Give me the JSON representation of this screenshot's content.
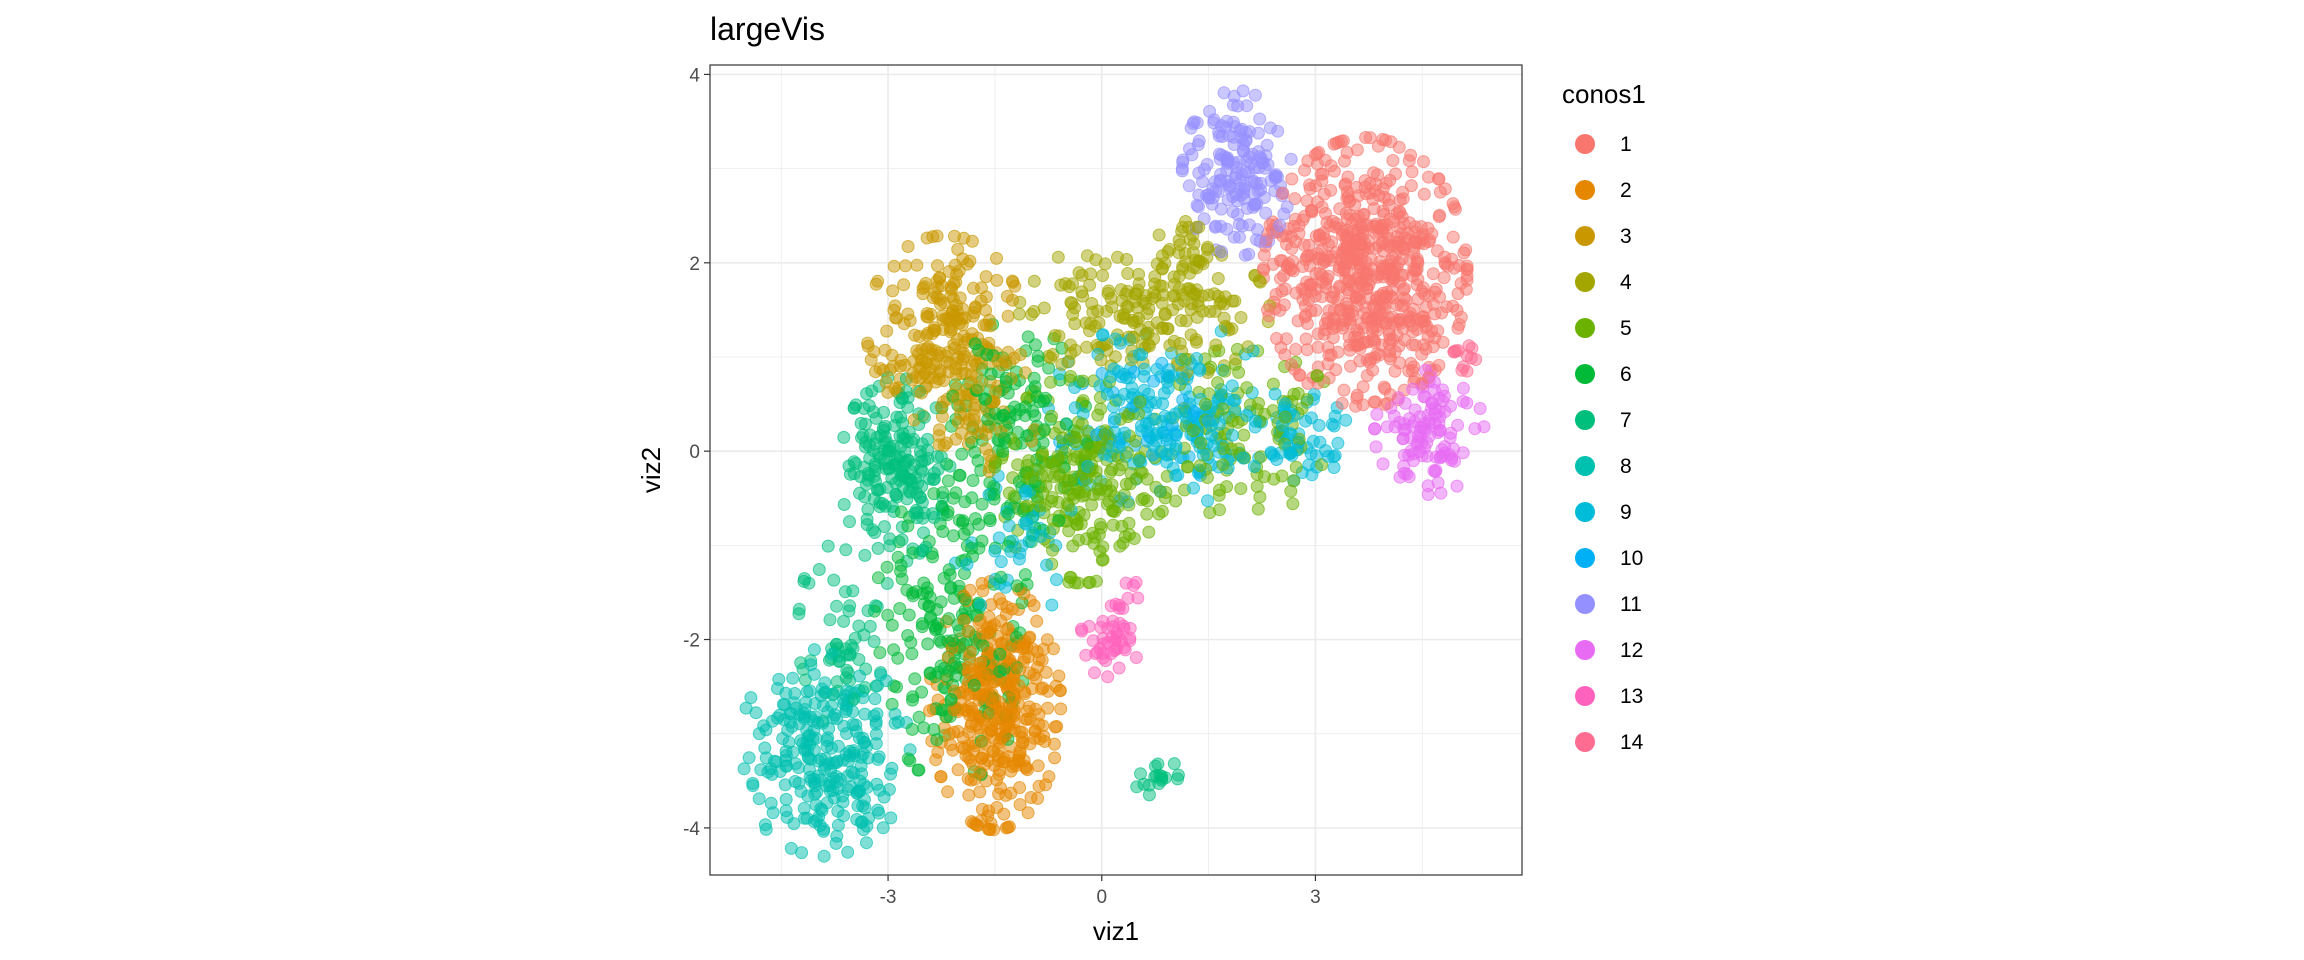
{
  "chart_data": {
    "type": "scatter",
    "title": "largeVis",
    "xlabel": "viz1",
    "ylabel": "viz2",
    "xlim": [
      -5.5,
      5.9
    ],
    "ylim": [
      -4.5,
      4.1
    ],
    "xticks": [
      -3,
      0,
      3
    ],
    "yticks": [
      -4,
      -2,
      0,
      2,
      4
    ],
    "xtick_labels": [
      "-3",
      "0",
      "3"
    ],
    "ytick_labels": [
      "-4",
      "-2",
      "0",
      "2",
      "4"
    ],
    "grid": true,
    "point_alpha": 0.5,
    "legend": {
      "title": "conos1",
      "placement": "right",
      "entries": [
        {
          "label": "1",
          "color": "#F8766D"
        },
        {
          "label": "2",
          "color": "#E58700"
        },
        {
          "label": "3",
          "color": "#C99800"
        },
        {
          "label": "4",
          "color": "#A3A500"
        },
        {
          "label": "5",
          "color": "#6BB100"
        },
        {
          "label": "6",
          "color": "#00BA38"
        },
        {
          "label": "7",
          "color": "#00BF7D"
        },
        {
          "label": "8",
          "color": "#00C0AF"
        },
        {
          "label": "9",
          "color": "#00BCD8"
        },
        {
          "label": "10",
          "color": "#00B0F6"
        },
        {
          "label": "11",
          "color": "#9590FF"
        },
        {
          "label": "12",
          "color": "#E76BF3"
        },
        {
          "label": "13",
          "color": "#FF62BC"
        },
        {
          "label": "14",
          "color": "#FF6C91"
        }
      ]
    },
    "clusters": [
      {
        "cluster": "1",
        "blobs": [
          {
            "cx": 3.7,
            "cy": 1.9,
            "sx": 0.65,
            "sy": 0.65,
            "n": 650
          }
        ]
      },
      {
        "cluster": "2",
        "blobs": [
          {
            "cx": -1.5,
            "cy": -2.7,
            "sx": 0.42,
            "sy": 0.6,
            "n": 380
          }
        ]
      },
      {
        "cluster": "3",
        "blobs": [
          {
            "cx": -2.2,
            "cy": 1.3,
            "sx": 0.5,
            "sy": 0.45,
            "n": 220
          },
          {
            "cx": -1.8,
            "cy": 0.4,
            "sx": 0.4,
            "sy": 0.35,
            "n": 60
          }
        ]
      },
      {
        "cluster": "4",
        "blobs": [
          {
            "cx": 0.6,
            "cy": 1.5,
            "sx": 0.8,
            "sy": 0.35,
            "n": 200
          },
          {
            "cx": 1.2,
            "cy": 2.1,
            "sx": 0.25,
            "sy": 0.2,
            "n": 25
          }
        ]
      },
      {
        "cluster": "5",
        "blobs": [
          {
            "cx": -0.3,
            "cy": -0.3,
            "sx": 0.55,
            "sy": 0.5,
            "n": 240
          },
          {
            "cx": 1.9,
            "cy": 0.2,
            "sx": 0.7,
            "sy": 0.4,
            "n": 120
          }
        ]
      },
      {
        "cluster": "6",
        "blobs": [
          {
            "cx": -2.1,
            "cy": -1.9,
            "sx": 0.5,
            "sy": 0.75,
            "n": 200
          },
          {
            "cx": -1.3,
            "cy": 0.2,
            "sx": 0.5,
            "sy": 0.55,
            "n": 150
          }
        ]
      },
      {
        "cluster": "7",
        "blobs": [
          {
            "cx": -2.9,
            "cy": -0.2,
            "sx": 0.35,
            "sy": 0.45,
            "n": 190
          },
          {
            "cx": -3.6,
            "cy": -1.9,
            "sx": 0.3,
            "sy": 0.5,
            "n": 60
          },
          {
            "cx": 0.75,
            "cy": -3.4,
            "sx": 0.15,
            "sy": 0.12,
            "n": 18
          }
        ]
      },
      {
        "cluster": "8",
        "blobs": [
          {
            "cx": -3.9,
            "cy": -3.2,
            "sx": 0.55,
            "sy": 0.5,
            "n": 260
          }
        ]
      },
      {
        "cluster": "9",
        "blobs": [
          {
            "cx": 0.9,
            "cy": 0.4,
            "sx": 0.75,
            "sy": 0.45,
            "n": 200
          },
          {
            "cx": 2.8,
            "cy": 0.15,
            "sx": 0.3,
            "sy": 0.25,
            "n": 60
          },
          {
            "cx": -1.2,
            "cy": -1.0,
            "sx": 0.4,
            "sy": 0.35,
            "n": 40
          }
        ]
      },
      {
        "cluster": "10",
        "blobs": [
          {
            "cx": 0.5,
            "cy": 0.2,
            "sx": 0.5,
            "sy": 0.35,
            "n": 40
          }
        ]
      },
      {
        "cluster": "11",
        "blobs": [
          {
            "cx": 1.9,
            "cy": 2.95,
            "sx": 0.35,
            "sy": 0.4,
            "n": 170
          }
        ]
      },
      {
        "cluster": "12",
        "blobs": [
          {
            "cx": 4.6,
            "cy": 0.2,
            "sx": 0.35,
            "sy": 0.3,
            "n": 110
          }
        ]
      },
      {
        "cluster": "13",
        "blobs": [
          {
            "cx": 0.1,
            "cy": -2.0,
            "sx": 0.2,
            "sy": 0.18,
            "n": 45
          },
          {
            "cx": 0.3,
            "cy": -1.5,
            "sx": 0.1,
            "sy": 0.1,
            "n": 6
          }
        ]
      },
      {
        "cluster": "14",
        "blobs": [
          {
            "cx": 5.1,
            "cy": 1.0,
            "sx": 0.12,
            "sy": 0.08,
            "n": 12
          }
        ]
      }
    ]
  }
}
